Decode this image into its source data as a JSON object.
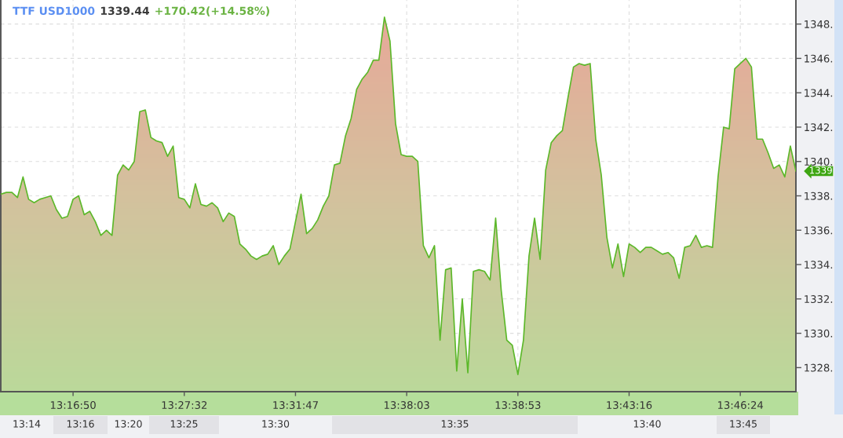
{
  "chart_data": {
    "type": "area",
    "title": "TTF USD1000",
    "annotations": [
      "1339.44",
      "+170.42(+14.58%)",
      "1339",
      "13:14",
      "13:16",
      "13:20",
      "13:25",
      "13:30",
      "13:35",
      "13:40",
      "13:45"
    ],
    "categories": [
      null,
      null,
      null,
      null,
      null,
      null,
      null,
      null,
      null,
      null,
      null,
      null,
      null,
      "13:16:50",
      null,
      null,
      null,
      null,
      null,
      null,
      null,
      null,
      null,
      null,
      null,
      null,
      null,
      null,
      null,
      null,
      null,
      null,
      null,
      "13:27:32",
      null,
      null,
      null,
      null,
      null,
      null,
      null,
      null,
      null,
      null,
      null,
      null,
      null,
      null,
      null,
      null,
      null,
      null,
      null,
      "13:31:47",
      null,
      null,
      null,
      null,
      null,
      null,
      null,
      null,
      null,
      null,
      null,
      null,
      null,
      null,
      null,
      null,
      null,
      null,
      null,
      "13:38:03",
      null,
      null,
      null,
      null,
      null,
      null,
      null,
      null,
      null,
      null,
      null,
      null,
      null,
      null,
      null,
      null,
      null,
      null,
      null,
      "13:38:53",
      null,
      null,
      null,
      null,
      null,
      null,
      null,
      null,
      null,
      null,
      null,
      null,
      null,
      null,
      null,
      null,
      null,
      null,
      null,
      "13:43:16",
      null,
      null,
      null,
      null,
      null,
      null,
      null,
      null,
      null,
      null,
      null,
      null,
      null,
      null,
      null,
      null,
      null,
      null,
      null,
      "13:46:24",
      null,
      null,
      null,
      null,
      null,
      null,
      null,
      null,
      null,
      null
    ],
    "series": [
      {
        "color": "#5cb82a",
        "values": [
          1338.1,
          1338.2,
          1338.2,
          1337.9,
          1339.1,
          1337.8,
          1337.6,
          1337.8,
          1337.9,
          1338.0,
          1337.2,
          1336.7,
          1336.8,
          1337.8,
          1338.0,
          1336.9,
          1337.1,
          1336.5,
          1335.7,
          1336.0,
          1335.7,
          1339.2,
          1339.8,
          1339.5,
          1340.0,
          1342.9,
          1343.0,
          1341.4,
          1341.2,
          1341.1,
          1340.3,
          1340.9,
          1337.9,
          1337.8,
          1337.3,
          1338.7,
          1337.5,
          1337.4,
          1337.6,
          1337.3,
          1336.5,
          1337.0,
          1336.8,
          1335.2,
          1334.9,
          1334.5,
          1334.3,
          1334.5,
          1334.6,
          1335.1,
          1334.0,
          1334.5,
          1334.9,
          1336.5,
          1338.1,
          1335.8,
          1336.1,
          1336.6,
          1337.4,
          1338.0,
          1339.8,
          1339.9,
          1341.5,
          1342.5,
          1344.2,
          1344.8,
          1345.2,
          1345.9,
          1345.9,
          1348.4,
          1347.0,
          1342.2,
          1340.4,
          1340.3,
          1340.3,
          1340.0,
          1335.1,
          1334.4,
          1335.1,
          1329.6,
          1333.7,
          1333.8,
          1327.8,
          1332.0,
          1327.7,
          1333.6,
          1333.7,
          1333.6,
          1333.1,
          1336.7,
          1332.5,
          1329.6,
          1329.3,
          1327.6,
          1329.6,
          1334.5,
          1336.7,
          1334.3,
          1339.5,
          1341.1,
          1341.5,
          1341.8,
          1343.7,
          1345.5,
          1345.7,
          1345.6,
          1345.7,
          1341.3,
          1339.2,
          1335.6,
          1333.8,
          1335.2,
          1333.3,
          1335.2,
          1335.0,
          1334.7,
          1335.0,
          1335.0,
          1334.8,
          1334.6,
          1334.7,
          1334.4,
          1333.2,
          1335.0,
          1335.1,
          1335.7,
          1335.0,
          1335.1,
          1335.0,
          1339.1,
          1342.0,
          1341.9,
          1345.4,
          1345.7,
          1346.0,
          1345.5,
          1341.3,
          1341.3,
          1340.5,
          1339.6,
          1339.8,
          1339.1,
          1340.9,
          1339.44
        ]
      }
    ],
    "ylim": [
      1326.6,
      1349.4
    ],
    "yticks": [
      {
        "value": 1328,
        "label": "1328."
      },
      {
        "value": 1330,
        "label": "1330."
      },
      {
        "value": 1332,
        "label": "1332."
      },
      {
        "value": 1334,
        "label": "1334."
      },
      {
        "value": 1336,
        "label": "1336."
      },
      {
        "value": 1338,
        "label": "1338."
      },
      {
        "value": 1340,
        "label": "1340."
      },
      {
        "value": 1342,
        "label": "1342."
      },
      {
        "value": 1344,
        "label": "1344."
      },
      {
        "value": 1346,
        "label": "1346."
      },
      {
        "value": 1348,
        "label": "1348."
      }
    ],
    "grid": true
  }
}
